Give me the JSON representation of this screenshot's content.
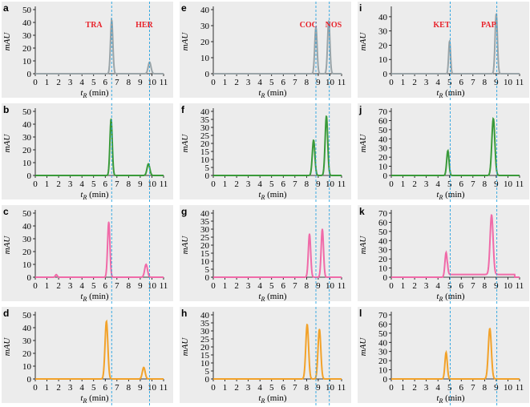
{
  "figure": {
    "marker_line_color": "#29a3e0",
    "plot_background": "#ececec"
  },
  "chart_data": [
    {
      "panel": "a",
      "type": "line",
      "column": 0,
      "row": 0,
      "color": "#9aa4a8",
      "ylabel": "mAU",
      "xlabel": "t_R (min)",
      "x_ticks": [
        0,
        1,
        2,
        3,
        4,
        5,
        6,
        7,
        8,
        9,
        10,
        11
      ],
      "y_ticks": [
        0,
        10,
        20,
        30,
        40,
        50
      ],
      "ylim": [
        0,
        50
      ],
      "xlim": [
        0,
        11
      ],
      "peaks": [
        {
          "x": 6.55,
          "height": 42,
          "width": 0.1
        },
        {
          "x": 9.8,
          "height": 9,
          "width": 0.12
        }
      ],
      "baseline": 0,
      "compound_labels": [
        {
          "text": "TRA",
          "x": 4.3
        },
        {
          "text": "HER",
          "x": 8.6
        }
      ],
      "markers": [
        6.55,
        9.8
      ]
    },
    {
      "panel": "b",
      "type": "line",
      "column": 0,
      "row": 1,
      "color": "#3a9a3a",
      "ylabel": "mAU",
      "xlabel": "t_R (min)",
      "x_ticks": [
        0,
        1,
        2,
        3,
        4,
        5,
        6,
        7,
        8,
        9,
        10,
        11
      ],
      "y_ticks": [
        0,
        10,
        20,
        30,
        40,
        50
      ],
      "ylim": [
        0,
        50
      ],
      "xlim": [
        0,
        11
      ],
      "peaks": [
        {
          "x": 6.5,
          "height": 44,
          "width": 0.1
        },
        {
          "x": 9.7,
          "height": 9,
          "width": 0.12
        }
      ],
      "baseline": 0,
      "markers": [
        6.55,
        9.8
      ]
    },
    {
      "panel": "c",
      "type": "line",
      "column": 0,
      "row": 2,
      "color": "#f06aa8",
      "ylabel": "mAU",
      "xlabel": "t_R (min)",
      "x_ticks": [
        0,
        1,
        2,
        3,
        4,
        5,
        6,
        7,
        8,
        9,
        10,
        11
      ],
      "y_ticks": [
        0,
        10,
        20,
        30,
        40,
        50
      ],
      "ylim": [
        0,
        50
      ],
      "xlim": [
        0,
        11
      ],
      "peaks": [
        {
          "x": 6.3,
          "height": 43,
          "width": 0.1
        },
        {
          "x": 9.5,
          "height": 10,
          "width": 0.12
        },
        {
          "x": 1.8,
          "height": 2,
          "width": 0.08
        }
      ],
      "baseline": 0,
      "markers": [
        6.55,
        9.8
      ]
    },
    {
      "panel": "d",
      "type": "line",
      "column": 0,
      "row": 3,
      "color": "#f2a22a",
      "ylabel": "mAU",
      "xlabel": "t_R (min)",
      "x_ticks": [
        0,
        1,
        2,
        3,
        4,
        5,
        6,
        7,
        8,
        9,
        10,
        11
      ],
      "y_ticks": [
        0,
        10,
        20,
        30,
        40,
        50
      ],
      "ylim": [
        0,
        50
      ],
      "xlim": [
        0,
        11
      ],
      "peaks": [
        {
          "x": 6.1,
          "height": 45,
          "width": 0.12
        },
        {
          "x": 9.3,
          "height": 9,
          "width": 0.12
        }
      ],
      "baseline": 0,
      "markers": [
        6.55,
        9.8
      ]
    },
    {
      "panel": "e",
      "type": "line",
      "column": 1,
      "row": 0,
      "color": "#9aa4a8",
      "ylabel": "mAU",
      "xlabel": "t_R (min)",
      "x_ticks": [
        0,
        1,
        2,
        3,
        4,
        5,
        6,
        7,
        8,
        9,
        10,
        11
      ],
      "y_ticks": [
        0,
        10,
        20,
        30,
        40
      ],
      "ylim": [
        0,
        40
      ],
      "xlim": [
        0,
        11
      ],
      "peaks": [
        {
          "x": 8.8,
          "height": 29,
          "width": 0.1
        },
        {
          "x": 9.9,
          "height": 33,
          "width": 0.1
        }
      ],
      "baseline": 0,
      "compound_labels": [
        {
          "text": "COC",
          "x": 7.4
        },
        {
          "text": "NOS",
          "x": 9.6
        }
      ],
      "markers": [
        8.8,
        9.95
      ]
    },
    {
      "panel": "f",
      "type": "line",
      "column": 1,
      "row": 1,
      "color": "#3a9a3a",
      "ylabel": "mAU",
      "xlabel": "t_R (min)",
      "x_ticks": [
        0,
        1,
        2,
        3,
        4,
        5,
        6,
        7,
        8,
        9,
        10,
        11
      ],
      "y_ticks": [
        0,
        5,
        10,
        15,
        20,
        25,
        30,
        35,
        40
      ],
      "ylim": [
        0,
        40
      ],
      "xlim": [
        0,
        11
      ],
      "peaks": [
        {
          "x": 8.6,
          "height": 22,
          "width": 0.11
        },
        {
          "x": 9.7,
          "height": 37,
          "width": 0.11
        }
      ],
      "baseline": 0,
      "markers": [
        8.8,
        9.95
      ]
    },
    {
      "panel": "g",
      "type": "line",
      "column": 1,
      "row": 2,
      "color": "#f06aa8",
      "ylabel": "mAU",
      "xlabel": "t_R (min)",
      "x_ticks": [
        0,
        1,
        2,
        3,
        4,
        5,
        6,
        7,
        8,
        9,
        10,
        11
      ],
      "y_ticks": [
        0,
        5,
        10,
        15,
        20,
        25,
        30,
        35,
        40
      ],
      "ylim": [
        0,
        40
      ],
      "xlim": [
        0,
        11
      ],
      "peaks": [
        {
          "x": 8.25,
          "height": 27,
          "width": 0.1
        },
        {
          "x": 9.35,
          "height": 30,
          "width": 0.1
        }
      ],
      "baseline": 0,
      "markers": [
        8.8,
        9.95
      ]
    },
    {
      "panel": "h",
      "type": "line",
      "column": 1,
      "row": 3,
      "color": "#f2a22a",
      "ylabel": "mAU",
      "xlabel": "t_R (min)",
      "x_ticks": [
        0,
        1,
        2,
        3,
        4,
        5,
        6,
        7,
        8,
        9,
        10,
        11
      ],
      "y_ticks": [
        0,
        5,
        10,
        15,
        20,
        25,
        30,
        35,
        40
      ],
      "ylim": [
        0,
        40
      ],
      "xlim": [
        0,
        11
      ],
      "peaks": [
        {
          "x": 8.05,
          "height": 34,
          "width": 0.12
        },
        {
          "x": 9.1,
          "height": 31,
          "width": 0.12
        }
      ],
      "baseline": 0,
      "markers": [
        8.8,
        9.95
      ]
    },
    {
      "panel": "i",
      "type": "line",
      "column": 2,
      "row": 0,
      "color": "#9aa4a8",
      "ylabel": "mAU",
      "xlabel": "t_R (min)",
      "x_ticks": [
        0,
        1,
        2,
        3,
        4,
        5,
        6,
        7,
        8,
        9,
        10,
        11
      ],
      "y_ticks": [
        0,
        10,
        20,
        30,
        40
      ],
      "ylim": [
        0,
        45
      ],
      "xlim": [
        0,
        11
      ],
      "peaks": [
        {
          "x": 5.0,
          "height": 23,
          "width": 0.08
        },
        {
          "x": 9.0,
          "height": 42,
          "width": 0.1
        }
      ],
      "baseline": 0,
      "compound_labels": [
        {
          "text": "KET",
          "x": 3.6
        },
        {
          "text": "PAP",
          "x": 7.7
        }
      ],
      "markers": [
        5.05,
        9.05
      ]
    },
    {
      "panel": "j",
      "type": "line",
      "column": 2,
      "row": 1,
      "color": "#3a9a3a",
      "ylabel": "mAU",
      "xlabel": "t_R (min)",
      "x_ticks": [
        0,
        1,
        2,
        3,
        4,
        5,
        6,
        7,
        8,
        9,
        10,
        11
      ],
      "y_ticks": [
        0,
        10,
        20,
        30,
        40,
        50,
        60,
        70
      ],
      "ylim": [
        0,
        70
      ],
      "xlim": [
        0,
        11
      ],
      "peaks": [
        {
          "x": 4.85,
          "height": 27,
          "width": 0.1
        },
        {
          "x": 8.75,
          "height": 62,
          "width": 0.13
        }
      ],
      "baseline": 0,
      "markers": [
        5.05,
        9.05
      ]
    },
    {
      "panel": "k",
      "type": "line",
      "column": 2,
      "row": 2,
      "color": "#f06aa8",
      "ylabel": "mAU",
      "xlabel": "t_R (min)",
      "x_ticks": [
        0,
        1,
        2,
        3,
        4,
        5,
        6,
        7,
        8,
        9,
        10,
        11
      ],
      "y_ticks": [
        0,
        10,
        20,
        30,
        40,
        50,
        60,
        70
      ],
      "ylim": [
        0,
        70
      ],
      "xlim": [
        0,
        11
      ],
      "peaks": [
        {
          "x": 4.7,
          "height": 27,
          "width": 0.1
        },
        {
          "x": 8.6,
          "height": 65,
          "width": 0.13
        }
      ],
      "baseline": 0,
      "elevated": {
        "from": 4.8,
        "to": 10.6,
        "level": 3
      },
      "markers": [
        5.05,
        9.05
      ]
    },
    {
      "panel": "l",
      "type": "line",
      "column": 2,
      "row": 3,
      "color": "#f2a22a",
      "ylabel": "mAU",
      "xlabel": "t_R (min)",
      "x_ticks": [
        0,
        1,
        2,
        3,
        4,
        5,
        6,
        7,
        8,
        9,
        10,
        11
      ],
      "y_ticks": [
        0,
        10,
        20,
        30,
        40,
        50,
        60,
        70
      ],
      "ylim": [
        0,
        70
      ],
      "xlim": [
        0,
        11
      ],
      "peaks": [
        {
          "x": 4.7,
          "height": 29,
          "width": 0.1
        },
        {
          "x": 8.45,
          "height": 55,
          "width": 0.13
        }
      ],
      "baseline": 0,
      "markers": [
        5.05,
        9.05
      ]
    }
  ]
}
